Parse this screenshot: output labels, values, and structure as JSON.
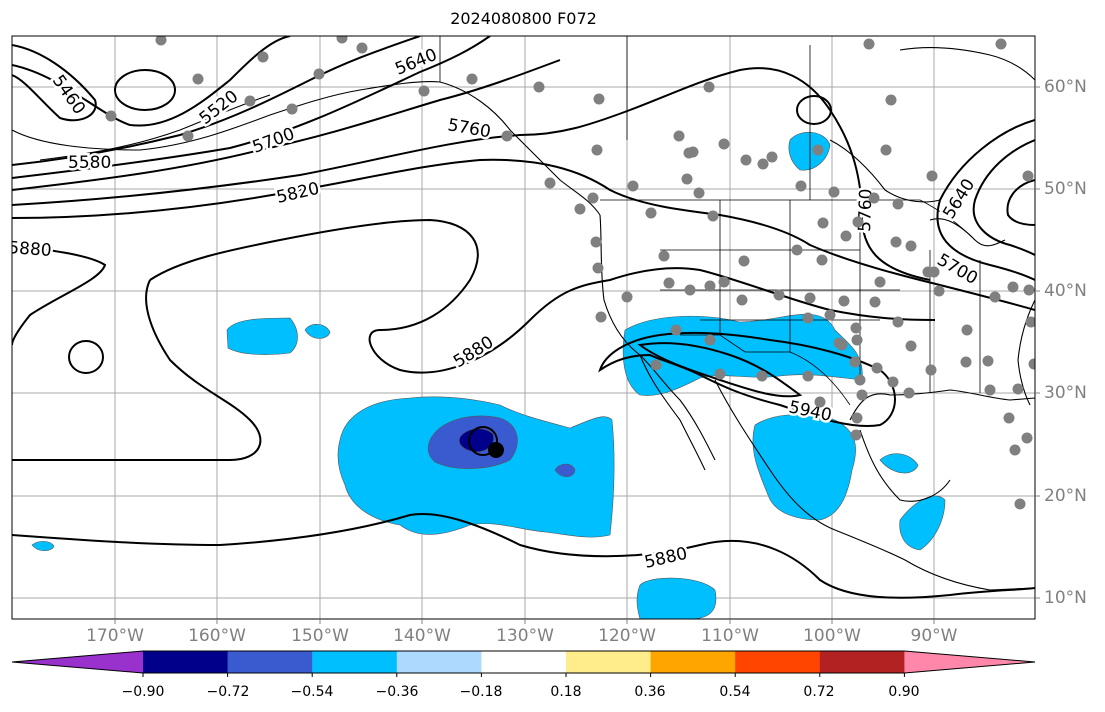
{
  "title": "2024080800 F072",
  "lon_labels": [
    "170°W",
    "160°W",
    "150°W",
    "140°W",
    "130°W",
    "120°W",
    "110°W",
    "100°W",
    "90°W"
  ],
  "lat_labels": [
    "60°N",
    "50°N",
    "40°N",
    "30°N",
    "20°N",
    "10°N"
  ],
  "contour_labels": [
    "5460",
    "5520",
    "5580",
    "5640",
    "5700",
    "5760",
    "5820",
    "5880",
    "5880",
    "5880",
    "5940",
    "5760",
    "5640",
    "5700"
  ],
  "colorbar": {
    "tick_labels": [
      "−0.90",
      "−0.72",
      "−0.54",
      "−0.36",
      "−0.18",
      "0.18",
      "0.36",
      "0.54",
      "0.72",
      "0.90"
    ],
    "colors": [
      "#9932cc",
      "#00008b",
      "#3a5bd0",
      "#00bfff",
      "#add8ff",
      "#ffffff",
      "#ffec8b",
      "#ffa500",
      "#ff4500",
      "#b22222",
      "#ff88aa"
    ]
  },
  "colors": {
    "contour": "#000000",
    "station_marker": "#808080",
    "grid": "#a0a0a0",
    "fill_light": "#00bfff",
    "fill_mid": "#3a5bd0",
    "fill_dark": "#00008b"
  }
}
